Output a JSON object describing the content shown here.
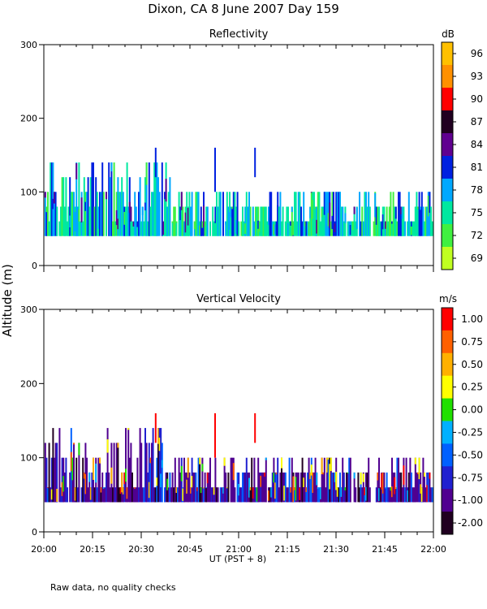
{
  "figure_title": "Dixon, CA  8 June 2007  Day 159",
  "ylabel": "Altitude (m)",
  "xlabel": "UT  (PST + 8)",
  "footnote": "Raw data, no quality checks",
  "chart_data": [
    {
      "type": "heatmap",
      "title": "Reflectivity",
      "xlabel": "UT  (PST + 8)",
      "ylabel": "Altitude (m)",
      "xlim_minutes": [
        0,
        120
      ],
      "x_ticks": [
        "20:00",
        "20:15",
        "20:30",
        "20:45",
        "21:00",
        "21:15",
        "21:30",
        "21:45",
        "22:00"
      ],
      "ylim": [
        0,
        300
      ],
      "y_ticks": [
        0,
        100,
        200,
        300
      ],
      "colorbar_unit": "dB",
      "colorbar_labels": [
        "96",
        "93",
        "90",
        "87",
        "84",
        "81",
        "78",
        "75",
        "72",
        "69"
      ],
      "colorbar_colors": [
        "#ffc000",
        "#ff9000",
        "#ff0000",
        "#200020",
        "#600090",
        "#0020e0",
        "#00a8ff",
        "#00e8a0",
        "#40f040",
        "#c0ff20"
      ],
      "echo_layer": {
        "base_m": 40,
        "typical_top_m": [
          60,
          120
        ],
        "max_top_m": 160
      },
      "value_range": [
        69,
        99
      ],
      "dominant_values": [
        75,
        78,
        81
      ]
    },
    {
      "type": "heatmap",
      "title": "Vertical Velocity",
      "xlabel": "UT  (PST + 8)",
      "ylabel": "Altitude (m)",
      "xlim_minutes": [
        0,
        120
      ],
      "x_ticks": [
        "20:00",
        "20:15",
        "20:30",
        "20:45",
        "21:00",
        "21:15",
        "21:30",
        "21:45",
        "22:00"
      ],
      "ylim": [
        0,
        300
      ],
      "y_ticks": [
        0,
        100,
        200,
        300
      ],
      "colorbar_unit": "m/s",
      "colorbar_labels": [
        "1.00",
        "0.75",
        "0.50",
        "0.25",
        "0.00",
        "-0.25",
        "-0.50",
        "-0.75",
        "-1.00",
        "-2.00"
      ],
      "colorbar_colors": [
        "#ff0000",
        "#ff6000",
        "#ffb000",
        "#ffff00",
        "#20e000",
        "#00b0ff",
        "#0060ff",
        "#2020d0",
        "#500090",
        "#200020"
      ],
      "echo_layer": {
        "base_m": 40,
        "typical_top_m": [
          60,
          120
        ],
        "max_top_m": 160
      },
      "value_range": [
        -2.0,
        1.2
      ],
      "dominant_values": [
        -0.75,
        -1.0
      ]
    }
  ]
}
